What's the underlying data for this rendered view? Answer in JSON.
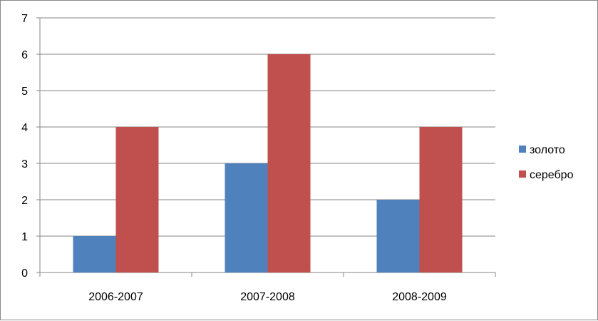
{
  "chart_data": {
    "type": "bar",
    "categories": [
      "2006-2007",
      "2007-2008",
      "2008-2009"
    ],
    "series": [
      {
        "name": "золото",
        "values": [
          1,
          3,
          2
        ],
        "color": "#4F81BD"
      },
      {
        "name": "серебро",
        "values": [
          4,
          6,
          4
        ],
        "color": "#C0504D"
      }
    ],
    "ylim": [
      0,
      7
    ],
    "yticks": [
      "0",
      "1",
      "2",
      "3",
      "4",
      "5",
      "6",
      "7"
    ],
    "grid": true,
    "legend_position": "right",
    "title": "",
    "xlabel": "",
    "ylabel": ""
  }
}
